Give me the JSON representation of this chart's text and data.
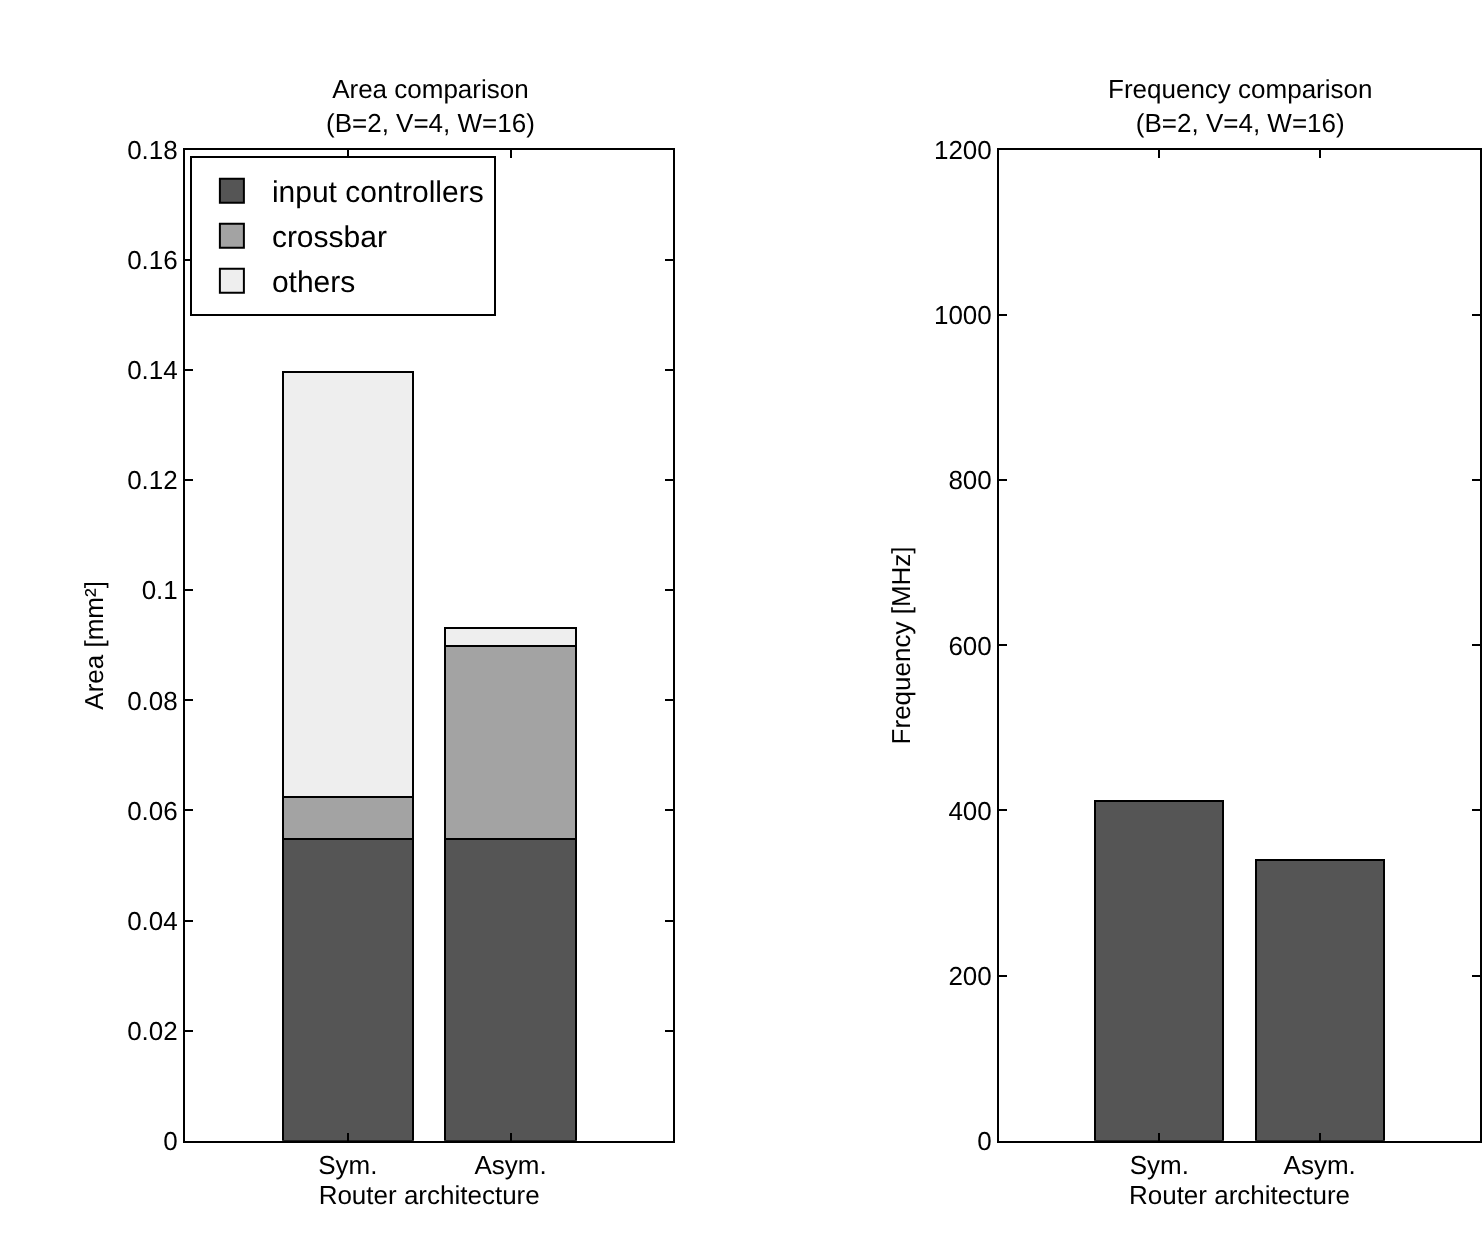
{
  "chart_data": [
    {
      "type": "bar",
      "title": "Area comparison",
      "subtitle": "(B=2, V=4, W=16)",
      "xlabel": "Router architecture",
      "ylabel": "Area [mm²]",
      "categories": [
        "Sym.",
        "Asym."
      ],
      "stacked": true,
      "series": [
        {
          "name": "input controllers",
          "color": "#555555",
          "values": [
            0.0548,
            0.0548
          ]
        },
        {
          "name": "crossbar",
          "color": "#a3a3a3",
          "values": [
            0.0076,
            0.0351
          ]
        },
        {
          "name": "others",
          "color": "#eeeeee",
          "values": [
            0.0772,
            0.0032
          ]
        }
      ],
      "ylim": [
        0,
        0.18
      ],
      "yticks": [
        0,
        0.02,
        0.04,
        0.06,
        0.08,
        0.1,
        0.12,
        0.14,
        0.16,
        0.18
      ],
      "legend": "top left"
    },
    {
      "type": "bar",
      "title": "Frequency comparison",
      "subtitle": "(B=2, V=4, W=16)",
      "xlabel": "Router architecture",
      "ylabel": "Frequency [MHz]",
      "categories": [
        "Sym.",
        "Asym."
      ],
      "series": [
        {
          "color": "#555555",
          "values": [
            411,
            340
          ]
        }
      ],
      "ylim": [
        0,
        1200
      ],
      "yticks": [
        0,
        200,
        400,
        600,
        800,
        1000,
        1200
      ],
      "legend": false
    }
  ]
}
